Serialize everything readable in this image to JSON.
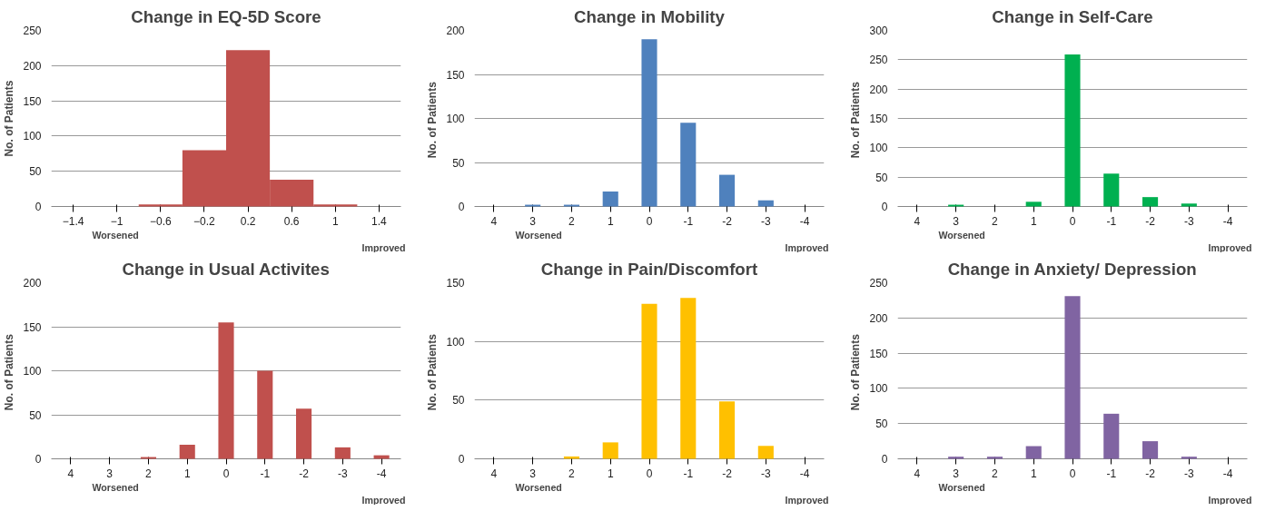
{
  "chart_data": [
    {
      "type": "histogram",
      "title": "Change in EQ-5D Score",
      "ylabel": "No. of Patients",
      "bins": [
        -1.6,
        -1.2,
        -0.8,
        -0.4,
        0,
        0.4,
        0.8,
        1.2,
        1.6
      ],
      "values": [
        0,
        0,
        3,
        80,
        222,
        38,
        3,
        0
      ],
      "color": "#c0504d",
      "xlim": [
        -1.6,
        1.6
      ],
      "xticks": [
        -1.4,
        -1,
        -0.6,
        -0.2,
        0.2,
        0.6,
        1,
        1.4
      ],
      "ylim": [
        0,
        250
      ],
      "yticks": [
        0,
        50,
        100,
        150,
        200,
        250
      ],
      "grid": "y",
      "annotations": [
        "Worsened",
        "Improved"
      ]
    },
    {
      "type": "bar",
      "title": "Change in Mobility",
      "ylabel": "No.  of Patients",
      "categories": [
        "4",
        "3",
        "2",
        "1",
        "0",
        "-1",
        "-2",
        "-3",
        "-4"
      ],
      "values": [
        0,
        2,
        2,
        17,
        190,
        95,
        36,
        7,
        0
      ],
      "color": "#4f81bd",
      "ylim": [
        0,
        200
      ],
      "yticks": [
        0,
        50,
        100,
        150,
        200
      ],
      "grid": "y",
      "annotations": [
        "Worsened",
        "Improved"
      ]
    },
    {
      "type": "bar",
      "title": "Change in Self-Care",
      "ylabel": "No.  of Patients",
      "categories": [
        "4",
        "3",
        "2",
        "1",
        "0",
        "-1",
        "-2",
        "-3",
        "-4"
      ],
      "values": [
        0,
        3,
        0,
        8,
        259,
        56,
        16,
        5,
        0
      ],
      "color": "#00b050",
      "ylim": [
        0,
        300
      ],
      "yticks": [
        0,
        50,
        100,
        150,
        200,
        250,
        300
      ],
      "grid": "y",
      "annotations": [
        "Worsened",
        "Improved"
      ]
    },
    {
      "type": "bar",
      "title": "Change in Usual Activites",
      "ylabel": "No.  of Patients",
      "categories": [
        "4",
        "3",
        "2",
        "1",
        "0",
        "-1",
        "-2",
        "-3",
        "-4"
      ],
      "values": [
        0,
        0,
        2,
        16,
        155,
        100,
        57,
        13,
        4
      ],
      "color": "#c0504d",
      "ylim": [
        0,
        200
      ],
      "yticks": [
        0,
        50,
        100,
        150,
        200
      ],
      "grid": "y",
      "annotations": [
        "Worsened",
        "Improved"
      ]
    },
    {
      "type": "bar",
      "title": "Change in Pain/Discomfort",
      "ylabel": "No.  of Patients",
      "categories": [
        "4",
        "3",
        "2",
        "1",
        "0",
        "-1",
        "-2",
        "-3",
        "-4"
      ],
      "values": [
        0,
        0,
        2,
        14,
        132,
        137,
        49,
        11,
        0
      ],
      "color": "#ffc000",
      "ylim": [
        0,
        150
      ],
      "yticks": [
        0,
        50,
        100,
        150
      ],
      "grid": "y",
      "annotations": [
        "Worsened",
        "Improved"
      ]
    },
    {
      "type": "bar",
      "title": "Change in Anxiety/ Depression",
      "ylabel": "No.  of Patients",
      "categories": [
        "4",
        "3",
        "2",
        "1",
        "0",
        "-1",
        "-2",
        "-3",
        "-4"
      ],
      "values": [
        0,
        3,
        3,
        18,
        231,
        64,
        25,
        3,
        0
      ],
      "color": "#8064a2",
      "ylim": [
        0,
        250
      ],
      "yticks": [
        0,
        50,
        100,
        150,
        200,
        250
      ],
      "grid": "y",
      "annotations": [
        "Worsened",
        "Improved"
      ]
    }
  ]
}
